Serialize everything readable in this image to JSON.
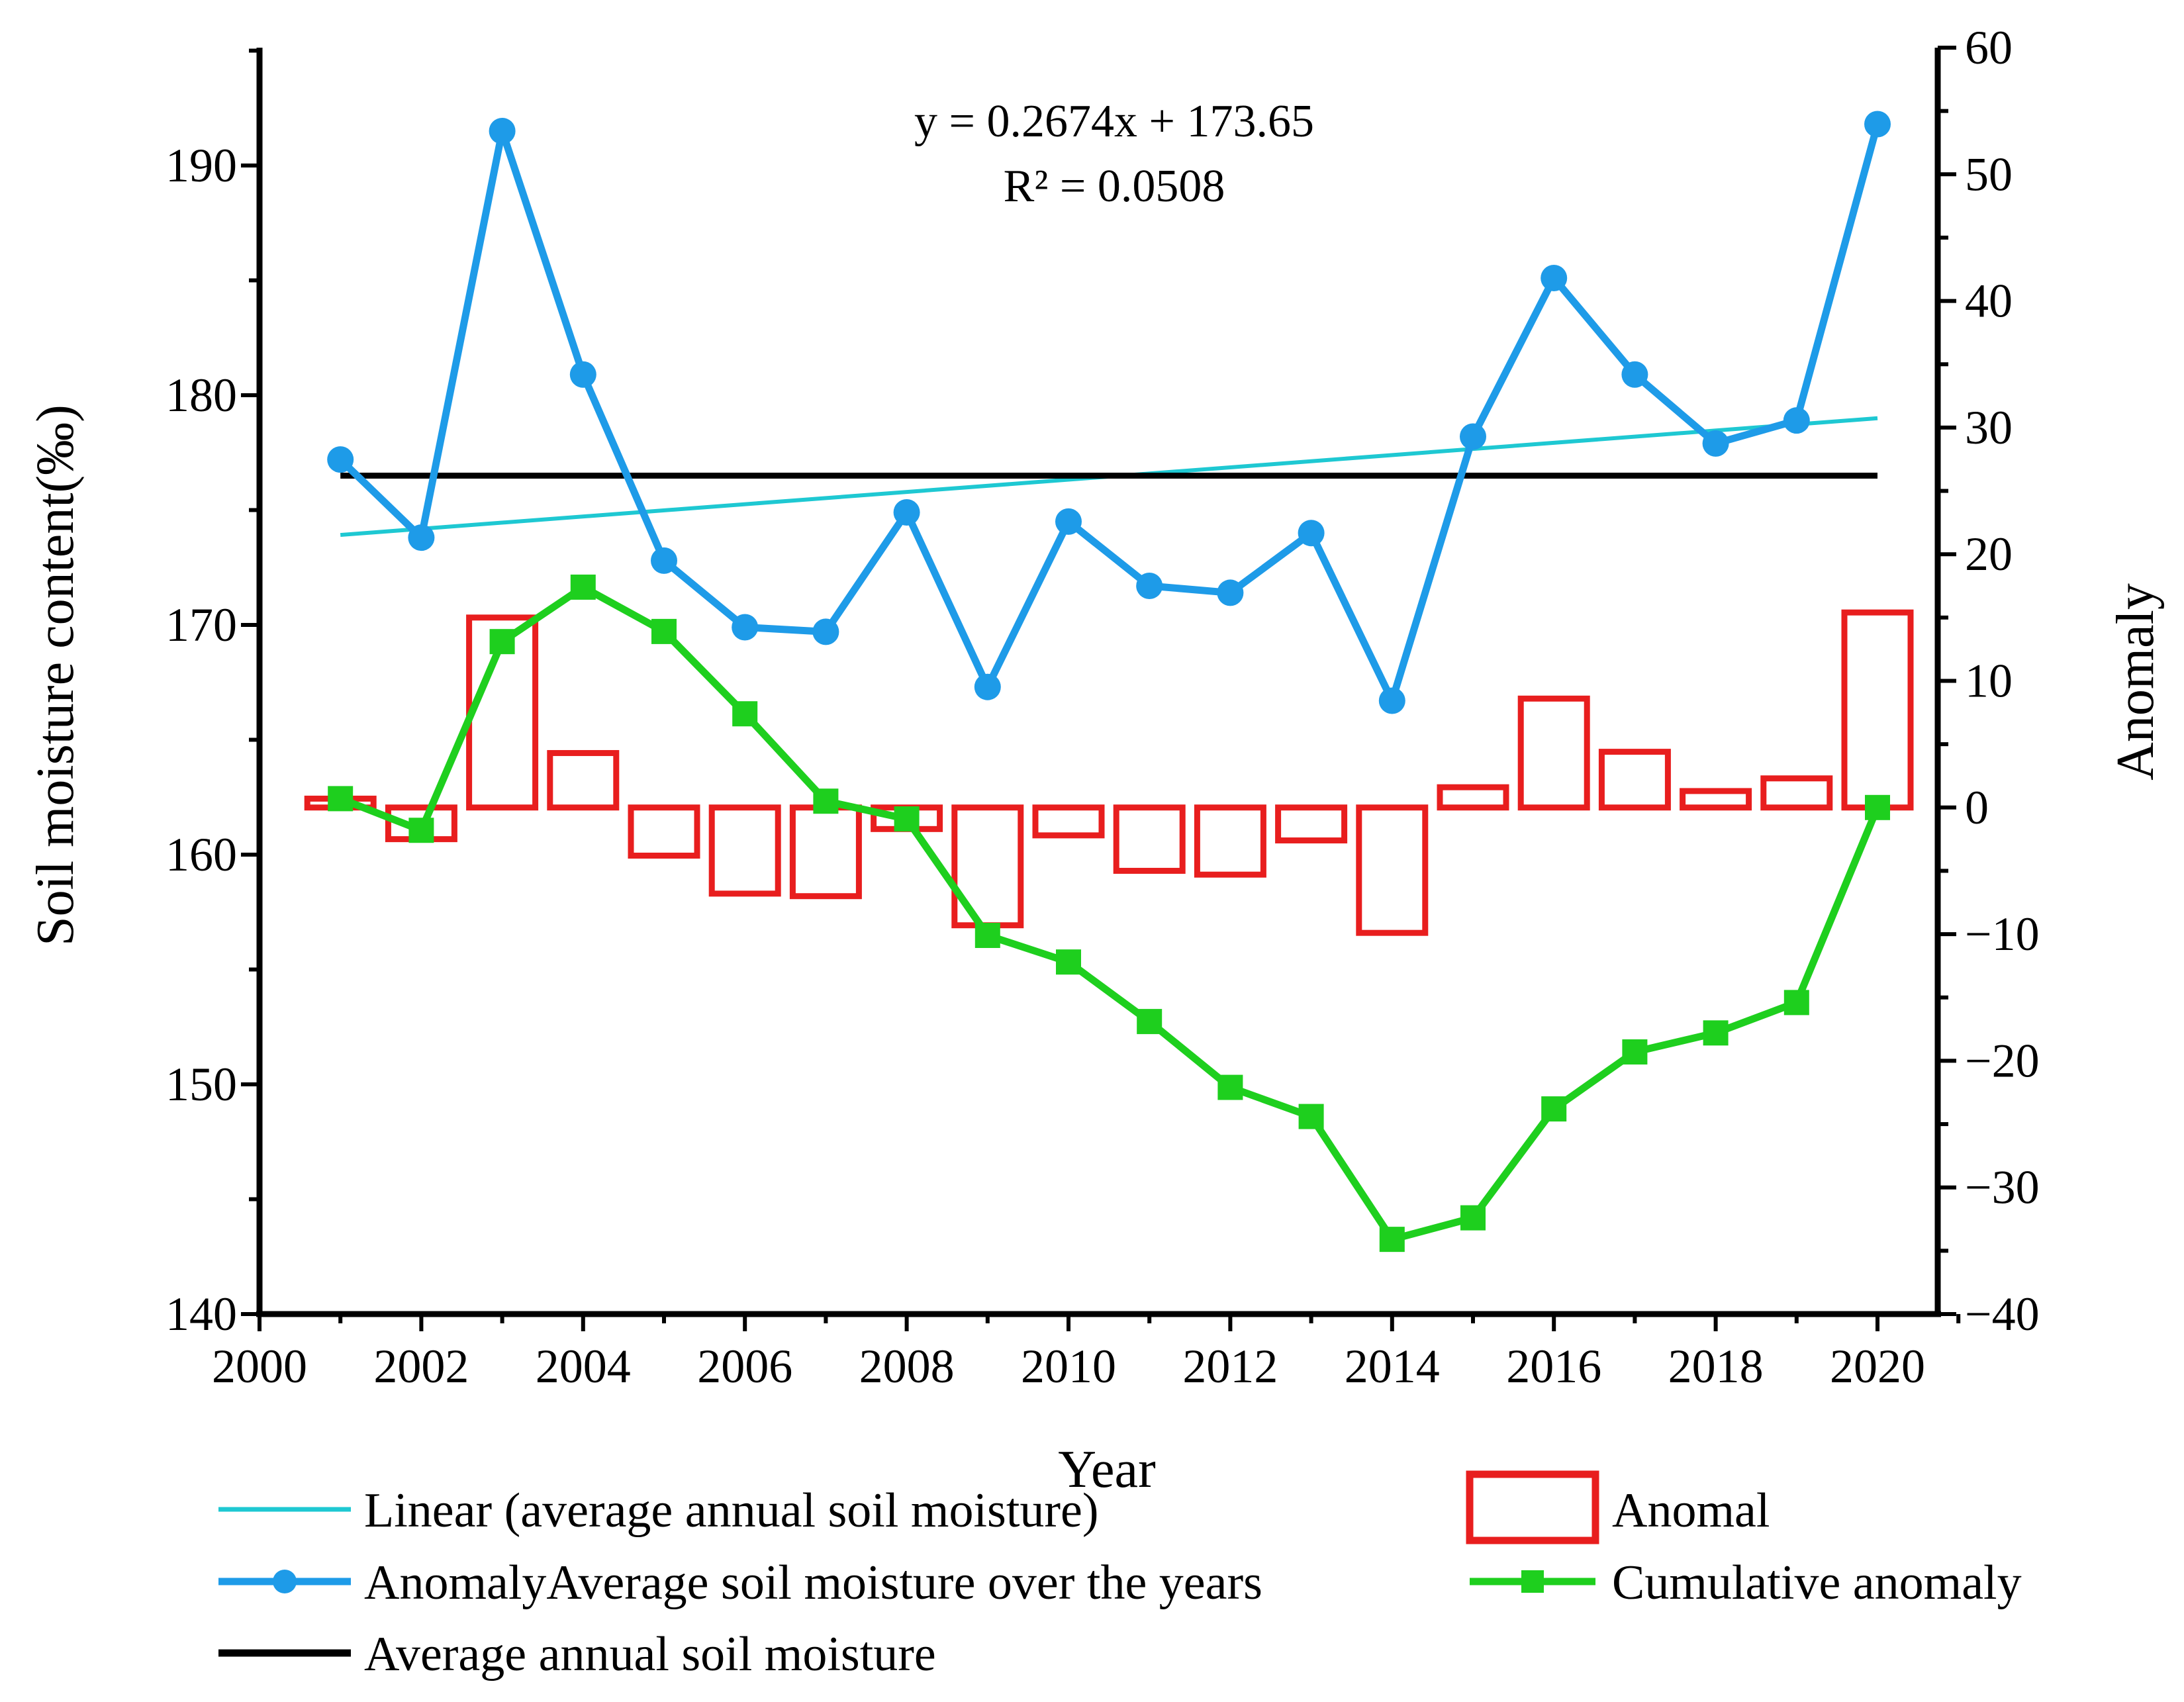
{
  "chart_data": {
    "type": "combo",
    "xlabel": "Year",
    "ylabel_left": "Soil moisture content(‰)",
    "ylabel_right": "Anomaly",
    "xlim": [
      2000,
      2021
    ],
    "ylim_left": [
      140,
      195
    ],
    "ylim_right": [
      -40,
      60
    ],
    "x_ticks": [
      "2000",
      "2002",
      "2004",
      "2006",
      "2008",
      "2010",
      "2012",
      "2014",
      "2016",
      "2018",
      "2020"
    ],
    "y_left_ticks": [
      "140",
      "150",
      "160",
      "170",
      "180",
      "190"
    ],
    "y_right_ticks": [
      "60",
      "50",
      "40",
      "30",
      "20",
      "10",
      "0",
      "−10",
      "−20",
      "−30",
      "−40"
    ],
    "years": [
      2001,
      2002,
      2003,
      2004,
      2005,
      2006,
      2007,
      2008,
      2009,
      2010,
      2011,
      2012,
      2013,
      2014,
      2015,
      2016,
      2017,
      2018,
      2019,
      2020
    ],
    "series": [
      {
        "name": "AnomalyAverage soil moisture over the years",
        "type": "line-marker",
        "axis": "left",
        "color": "#1E9BE8",
        "values": [
          177.2,
          173.8,
          191.5,
          180.9,
          172.8,
          169.9,
          169.7,
          174.9,
          167.3,
          174.5,
          171.7,
          171.4,
          174.0,
          166.7,
          178.2,
          185.1,
          180.9,
          177.9,
          178.9,
          191.8
        ]
      },
      {
        "name": "Anomal",
        "type": "bar",
        "axis": "right",
        "color": "#E81E1E",
        "values": [
          0.7,
          -2.5,
          15.0,
          4.3,
          -3.8,
          -6.8,
          -7.0,
          -1.7,
          -9.3,
          -2.2,
          -5.0,
          -5.3,
          -2.6,
          -9.9,
          1.6,
          8.6,
          4.4,
          1.3,
          2.3,
          15.4
        ]
      },
      {
        "name": "Cumulative anomaly",
        "type": "line-marker",
        "axis": "right",
        "color": "#1ECF1E",
        "values": [
          0.7,
          -1.8,
          13.1,
          17.4,
          13.9,
          7.4,
          0.5,
          -0.9,
          -10.1,
          -12.2,
          -16.9,
          -22.1,
          -24.4,
          -34.1,
          -32.4,
          -23.8,
          -19.3,
          -17.8,
          -15.4,
          0.0
        ]
      },
      {
        "name": "Average annual soil moisture",
        "type": "hline",
        "axis": "left",
        "color": "#000000",
        "value": 176.5
      },
      {
        "name": "Linear (average annual soil moisture)",
        "type": "trend",
        "axis": "left",
        "color": "#1EC8D2",
        "slope": 0.2674,
        "intercept": 173.65,
        "x_start_index": 1,
        "x_end_index": 20
      }
    ],
    "annotations": [
      "y = 0.2674x + 173.65",
      "R² = 0.0508"
    ],
    "legend": {
      "placement": "bottom",
      "items": [
        "Linear (average annual soil moisture)",
        "Anomal",
        "AnomalyAverage soil moisture over the years",
        "Cumulative anomaly",
        "Average annual soil moisture"
      ]
    }
  }
}
